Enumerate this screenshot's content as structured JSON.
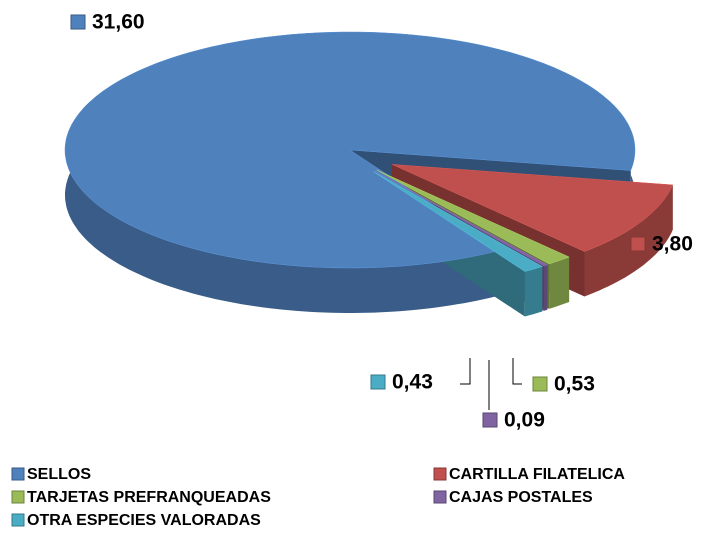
{
  "chart_data": {
    "type": "pie",
    "categories": [
      "SELLOS",
      "CARTILLA FILATELICA",
      "TARJETAS PREFRANQUEADAS",
      "CAJAS POSTALES",
      "OTRA ESPECIES VALORADAS"
    ],
    "values": [
      31.6,
      3.8,
      0.53,
      0.09,
      0.43
    ],
    "value_labels": [
      "31,60",
      "3,80",
      "0,53",
      "0,09",
      "0,43"
    ],
    "colors": [
      "#4f81bd",
      "#c0504d",
      "#9bbb59",
      "#8064a2",
      "#4bacc6"
    ],
    "legend": "bottom"
  }
}
